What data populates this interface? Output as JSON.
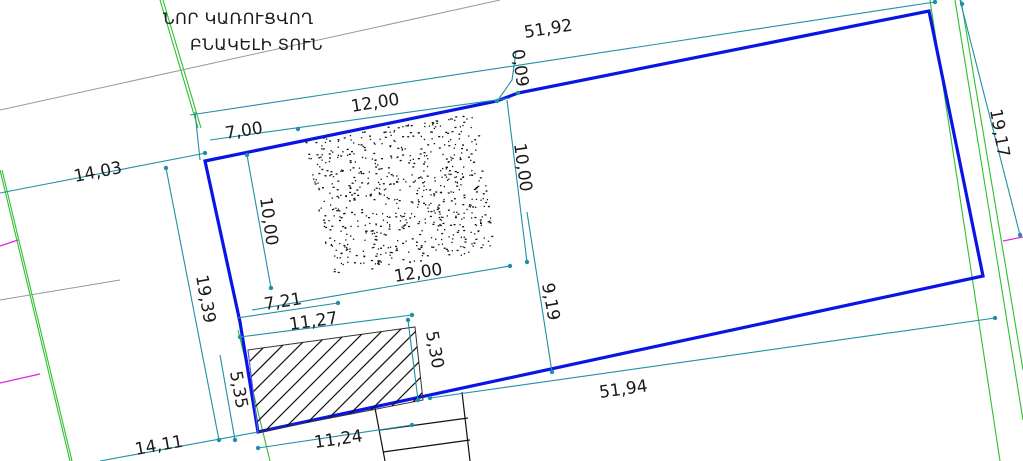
{
  "title": {
    "line1": "ՆՈՐ ԿԱՌՈՒՑՎՈՂ",
    "line2": "ԲՆԱԿԵԼԻ ՏՈՒՆ"
  },
  "dimensions": {
    "top_length": "51,92",
    "bottom_length": "51,94",
    "right_width": "19,17",
    "left_width": "19,39",
    "offset_top": "0,09",
    "house_top": "12,00",
    "house_bottom": "12,00",
    "house_right": "10,00",
    "house_left": "10,00",
    "house_offset_top": "7,00",
    "house_offset_bottom": "7,21",
    "house_to_bottom": "9,19",
    "outbuilding_top": "11,27",
    "outbuilding_bottom": "11,24",
    "outbuilding_left": "5,35",
    "outbuilding_right": "5,30",
    "left_neighbor_top": "14,03",
    "left_neighbor_bottom": "14,11"
  },
  "colors": {
    "boundary": "#0a14e6",
    "dimension_lines": "#1f8fa8",
    "road_lines": "#2fbf2f",
    "neighbor_lines": "#e020e0"
  }
}
